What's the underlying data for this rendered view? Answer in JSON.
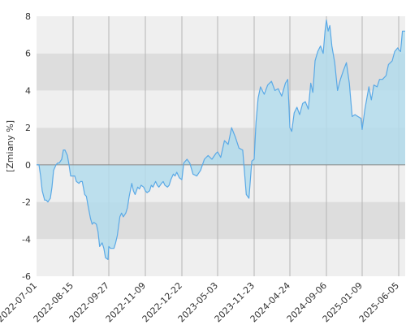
{
  "chart_data": {
    "type": "area",
    "title": "",
    "ylabel": "[Zmiany %]",
    "xlabel": "",
    "ylim": [
      -6,
      8
    ],
    "y_ticks": [
      8,
      6,
      4,
      2,
      0,
      -2,
      -4,
      -6
    ],
    "x_range": [
      "2022-07-01",
      "2025-07-10"
    ],
    "x_tick_labels": [
      "2022-07-01",
      "2022-08-15",
      "2022-09-27",
      "2022-11-09",
      "2022-12-22",
      "2023-05-03",
      "2023-11-23",
      "2024-04-24",
      "2024-09-06",
      "2025-01-09",
      "2025-06-05"
    ],
    "series": [
      {
        "points": [
          [
            "2022-07-01",
            0.0
          ],
          [
            "2022-07-04",
            0.0
          ],
          [
            "2022-07-06",
            -0.6
          ],
          [
            "2022-07-08",
            -1.4
          ],
          [
            "2022-07-11",
            -1.9
          ],
          [
            "2022-07-13",
            -1.9
          ],
          [
            "2022-07-15",
            -2.0
          ],
          [
            "2022-07-18",
            -1.8
          ],
          [
            "2022-07-20",
            -1.2
          ],
          [
            "2022-07-22",
            -0.3
          ],
          [
            "2022-07-25",
            0.0
          ],
          [
            "2022-07-27",
            0.1
          ],
          [
            "2022-07-29",
            0.1
          ],
          [
            "2022-08-01",
            0.3
          ],
          [
            "2022-08-03",
            0.8
          ],
          [
            "2022-08-05",
            0.8
          ],
          [
            "2022-08-08",
            0.5
          ],
          [
            "2022-08-10",
            0.0
          ],
          [
            "2022-08-12",
            -0.6
          ],
          [
            "2022-08-15",
            -0.6
          ],
          [
            "2022-08-17",
            -0.6
          ],
          [
            "2022-08-19",
            -0.9
          ],
          [
            "2022-08-22",
            -1.0
          ],
          [
            "2022-08-24",
            -0.9
          ],
          [
            "2022-08-26",
            -0.9
          ],
          [
            "2022-08-29",
            -1.6
          ],
          [
            "2022-08-31",
            -1.7
          ],
          [
            "2022-09-02",
            -2.2
          ],
          [
            "2022-09-05",
            -2.9
          ],
          [
            "2022-09-07",
            -3.2
          ],
          [
            "2022-09-09",
            -3.1
          ],
          [
            "2022-09-12",
            -3.2
          ],
          [
            "2022-09-14",
            -3.6
          ],
          [
            "2022-09-16",
            -4.4
          ],
          [
            "2022-09-19",
            -4.2
          ],
          [
            "2022-09-21",
            -4.5
          ],
          [
            "2022-09-23",
            -5.0
          ],
          [
            "2022-09-26",
            -5.1
          ],
          [
            "2022-09-27",
            -4.4
          ],
          [
            "2022-09-29",
            -4.5
          ],
          [
            "2022-10-03",
            -4.5
          ],
          [
            "2022-10-05",
            -4.2
          ],
          [
            "2022-10-07",
            -3.8
          ],
          [
            "2022-10-10",
            -2.8
          ],
          [
            "2022-10-12",
            -2.6
          ],
          [
            "2022-10-14",
            -2.8
          ],
          [
            "2022-10-17",
            -2.6
          ],
          [
            "2022-10-19",
            -2.3
          ],
          [
            "2022-10-21",
            -1.7
          ],
          [
            "2022-10-24",
            -1.0
          ],
          [
            "2022-10-26",
            -1.4
          ],
          [
            "2022-10-28",
            -1.6
          ],
          [
            "2022-10-31",
            -1.2
          ],
          [
            "2022-11-02",
            -1.3
          ],
          [
            "2022-11-04",
            -1.1
          ],
          [
            "2022-11-07",
            -1.2
          ],
          [
            "2022-11-09",
            -1.4
          ],
          [
            "2022-11-11",
            -1.5
          ],
          [
            "2022-11-14",
            -1.4
          ],
          [
            "2022-11-16",
            -1.1
          ],
          [
            "2022-11-18",
            -1.2
          ],
          [
            "2022-11-21",
            -0.9
          ],
          [
            "2022-11-23",
            -1.1
          ],
          [
            "2022-11-25",
            -1.2
          ],
          [
            "2022-11-28",
            -1.0
          ],
          [
            "2022-11-30",
            -0.9
          ],
          [
            "2022-12-02",
            -1.1
          ],
          [
            "2022-12-05",
            -1.2
          ],
          [
            "2022-12-07",
            -1.1
          ],
          [
            "2022-12-09",
            -0.8
          ],
          [
            "2022-12-12",
            -0.5
          ],
          [
            "2022-12-14",
            -0.6
          ],
          [
            "2022-12-16",
            -0.4
          ],
          [
            "2022-12-19",
            -0.7
          ],
          [
            "2022-12-22",
            -0.8
          ],
          [
            "2022-12-29",
            0.1
          ],
          [
            "2023-01-10",
            0.3
          ],
          [
            "2023-01-20",
            0.1
          ],
          [
            "2023-02-01",
            -0.5
          ],
          [
            "2023-02-15",
            -0.6
          ],
          [
            "2023-03-01",
            -0.3
          ],
          [
            "2023-03-15",
            0.3
          ],
          [
            "2023-03-29",
            0.5
          ],
          [
            "2023-04-12",
            0.3
          ],
          [
            "2023-04-26",
            0.6
          ],
          [
            "2023-05-03",
            0.7
          ],
          [
            "2023-05-20",
            0.4
          ],
          [
            "2023-06-10",
            1.3
          ],
          [
            "2023-07-01",
            1.1
          ],
          [
            "2023-07-20",
            2.0
          ],
          [
            "2023-08-10",
            1.5
          ],
          [
            "2023-08-30",
            0.9
          ],
          [
            "2023-09-20",
            0.8
          ],
          [
            "2023-10-10",
            -1.6
          ],
          [
            "2023-10-25",
            -1.8
          ],
          [
            "2023-11-10",
            0.2
          ],
          [
            "2023-11-23",
            0.3
          ],
          [
            "2023-12-01",
            2.3
          ],
          [
            "2023-12-10",
            3.6
          ],
          [
            "2023-12-20",
            4.2
          ],
          [
            "2024-01-05",
            3.8
          ],
          [
            "2024-01-20",
            4.3
          ],
          [
            "2024-02-05",
            4.5
          ],
          [
            "2024-02-20",
            4.0
          ],
          [
            "2024-03-05",
            4.1
          ],
          [
            "2024-03-20",
            3.7
          ],
          [
            "2024-04-05",
            4.4
          ],
          [
            "2024-04-15",
            4.6
          ],
          [
            "2024-04-24",
            2.0
          ],
          [
            "2024-05-01",
            1.8
          ],
          [
            "2024-05-10",
            2.8
          ],
          [
            "2024-05-20",
            3.1
          ],
          [
            "2024-05-30",
            2.7
          ],
          [
            "2024-06-10",
            3.3
          ],
          [
            "2024-06-20",
            3.4
          ],
          [
            "2024-07-01",
            3.0
          ],
          [
            "2024-07-10",
            4.4
          ],
          [
            "2024-07-18",
            3.9
          ],
          [
            "2024-07-26",
            5.6
          ],
          [
            "2024-08-05",
            6.1
          ],
          [
            "2024-08-15",
            6.4
          ],
          [
            "2024-08-25",
            6.0
          ],
          [
            "2024-09-01",
            7.2
          ],
          [
            "2024-09-06",
            7.8
          ],
          [
            "2024-09-12",
            7.2
          ],
          [
            "2024-09-18",
            7.5
          ],
          [
            "2024-09-25",
            6.4
          ],
          [
            "2024-10-05",
            5.5
          ],
          [
            "2024-10-15",
            4.0
          ],
          [
            "2024-10-25",
            4.6
          ],
          [
            "2024-11-05",
            5.1
          ],
          [
            "2024-11-15",
            5.5
          ],
          [
            "2024-11-25",
            4.4
          ],
          [
            "2024-12-05",
            2.6
          ],
          [
            "2024-12-15",
            2.7
          ],
          [
            "2024-12-25",
            2.6
          ],
          [
            "2025-01-05",
            2.5
          ],
          [
            "2025-01-09",
            1.9
          ],
          [
            "2025-01-20",
            3.0
          ],
          [
            "2025-02-05",
            4.2
          ],
          [
            "2025-02-15",
            3.5
          ],
          [
            "2025-02-25",
            4.3
          ],
          [
            "2025-03-10",
            4.2
          ],
          [
            "2025-03-20",
            4.6
          ],
          [
            "2025-04-01",
            4.6
          ],
          [
            "2025-04-15",
            4.8
          ],
          [
            "2025-04-25",
            5.4
          ],
          [
            "2025-05-10",
            5.6
          ],
          [
            "2025-05-20",
            6.1
          ],
          [
            "2025-06-01",
            6.3
          ],
          [
            "2025-06-05",
            6.2
          ],
          [
            "2025-06-15",
            6.1
          ],
          [
            "2025-06-25",
            7.2
          ],
          [
            "2025-07-10",
            7.2
          ]
        ]
      }
    ],
    "grid": true,
    "colors": {
      "line": "#5aa9e6",
      "fill": "#b3dcec",
      "band_light": "#efefef",
      "band_dark": "#dddddd",
      "vgrid": "#b5b5b5",
      "zero_line": "#888888"
    }
  }
}
